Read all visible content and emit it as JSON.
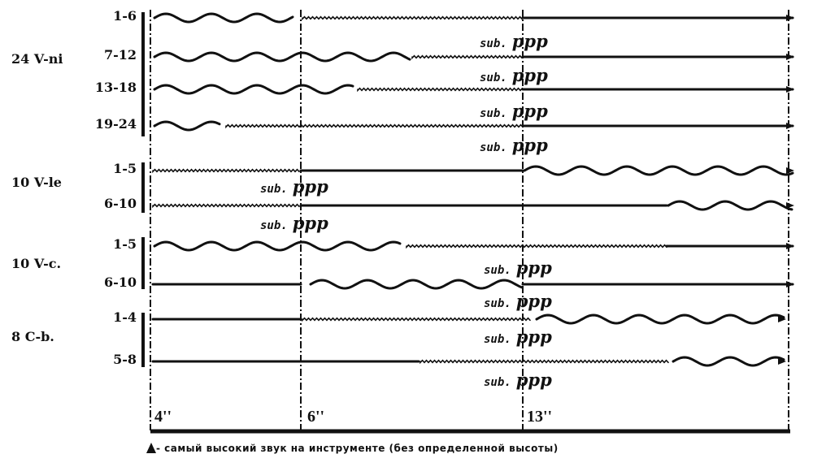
{
  "groups": [
    {
      "label": "24 V-ni",
      "rows": [
        {
          "label": "1-6",
          "segments": [
            "wavy",
            "tremolo",
            "solid"
          ]
        },
        {
          "label": "7-12",
          "segments": [
            "wavy",
            "tremolo",
            "solid"
          ]
        },
        {
          "label": "13-18",
          "segments": [
            "wavy",
            "tremolo",
            "solid"
          ]
        },
        {
          "label": "19-24",
          "segments": [
            "wavy",
            "tremolo",
            "solid"
          ]
        }
      ]
    },
    {
      "label": "10 V-le",
      "rows": [
        {
          "label": "1-5",
          "segments": [
            "tremolo",
            "solid",
            "wavy"
          ]
        },
        {
          "label": "6-10",
          "segments": [
            "tremolo",
            "solid",
            "wavy"
          ]
        }
      ]
    },
    {
      "label": "10 V-c.",
      "rows": [
        {
          "label": "1-5",
          "segments": [
            "wavy",
            "tremolo",
            "solid"
          ]
        },
        {
          "label": "6-10",
          "segments": [
            "solid",
            "wavy",
            "solid"
          ]
        }
      ]
    },
    {
      "label": "8 C-b.",
      "rows": [
        {
          "label": "1-4",
          "segments": [
            "solid",
            "tremolo",
            "wavy"
          ]
        },
        {
          "label": "5-8",
          "segments": [
            "solid",
            "tremolo",
            "wavy"
          ]
        }
      ]
    }
  ],
  "dynamics": {
    "sub": "sub.",
    "ppp": "ppp"
  },
  "time_marks": [
    "4''",
    "6''",
    "13''"
  ],
  "legend": "- самый высокий звук на инструменте (без определенной высоты)",
  "legend_icon": "triangle-note-icon",
  "ink_color": "#111111"
}
